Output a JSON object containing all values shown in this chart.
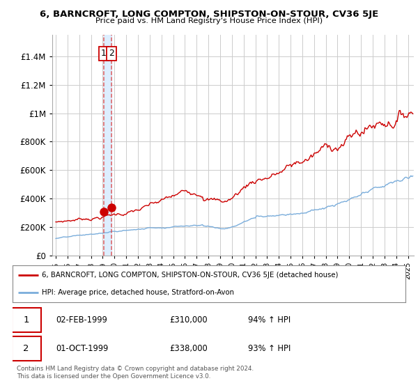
{
  "title": "6, BARNCROFT, LONG COMPTON, SHIPSTON-ON-STOUR, CV36 5JE",
  "subtitle": "Price paid vs. HM Land Registry's House Price Index (HPI)",
  "background_color": "#ffffff",
  "grid_color": "#cccccc",
  "red_line_color": "#cc0000",
  "blue_line_color": "#7aaddb",
  "dashed_line_color": "#dd4444",
  "shade_color": "#ddeeff",
  "ylabel_ticks": [
    "£0",
    "£200K",
    "£400K",
    "£600K",
    "£800K",
    "£1M",
    "£1.2M",
    "£1.4M"
  ],
  "ytick_values": [
    0,
    200000,
    400000,
    600000,
    800000,
    1000000,
    1200000,
    1400000
  ],
  "ylim": [
    0,
    1550000
  ],
  "xlim_start": 1994.7,
  "xlim_end": 2025.5,
  "legend_label_red": "6, BARNCROFT, LONG COMPTON, SHIPSTON-ON-STOUR, CV36 5JE (detached house)",
  "legend_label_blue": "HPI: Average price, detached house, Stratford-on-Avon",
  "transaction1_date": "02-FEB-1999",
  "transaction1_price": "£310,000",
  "transaction1_hpi": "94% ↑ HPI",
  "transaction2_date": "01-OCT-1999",
  "transaction2_price": "£338,000",
  "transaction2_hpi": "93% ↑ HPI",
  "footnote": "Contains HM Land Registry data © Crown copyright and database right 2024.\nThis data is licensed under the Open Government Licence v3.0.",
  "dashed_x1": 1999.083,
  "dashed_x2": 1999.75,
  "marker1_x": 1999.083,
  "marker1_y": 310000,
  "marker2_x": 1999.75,
  "marker2_y": 338000
}
